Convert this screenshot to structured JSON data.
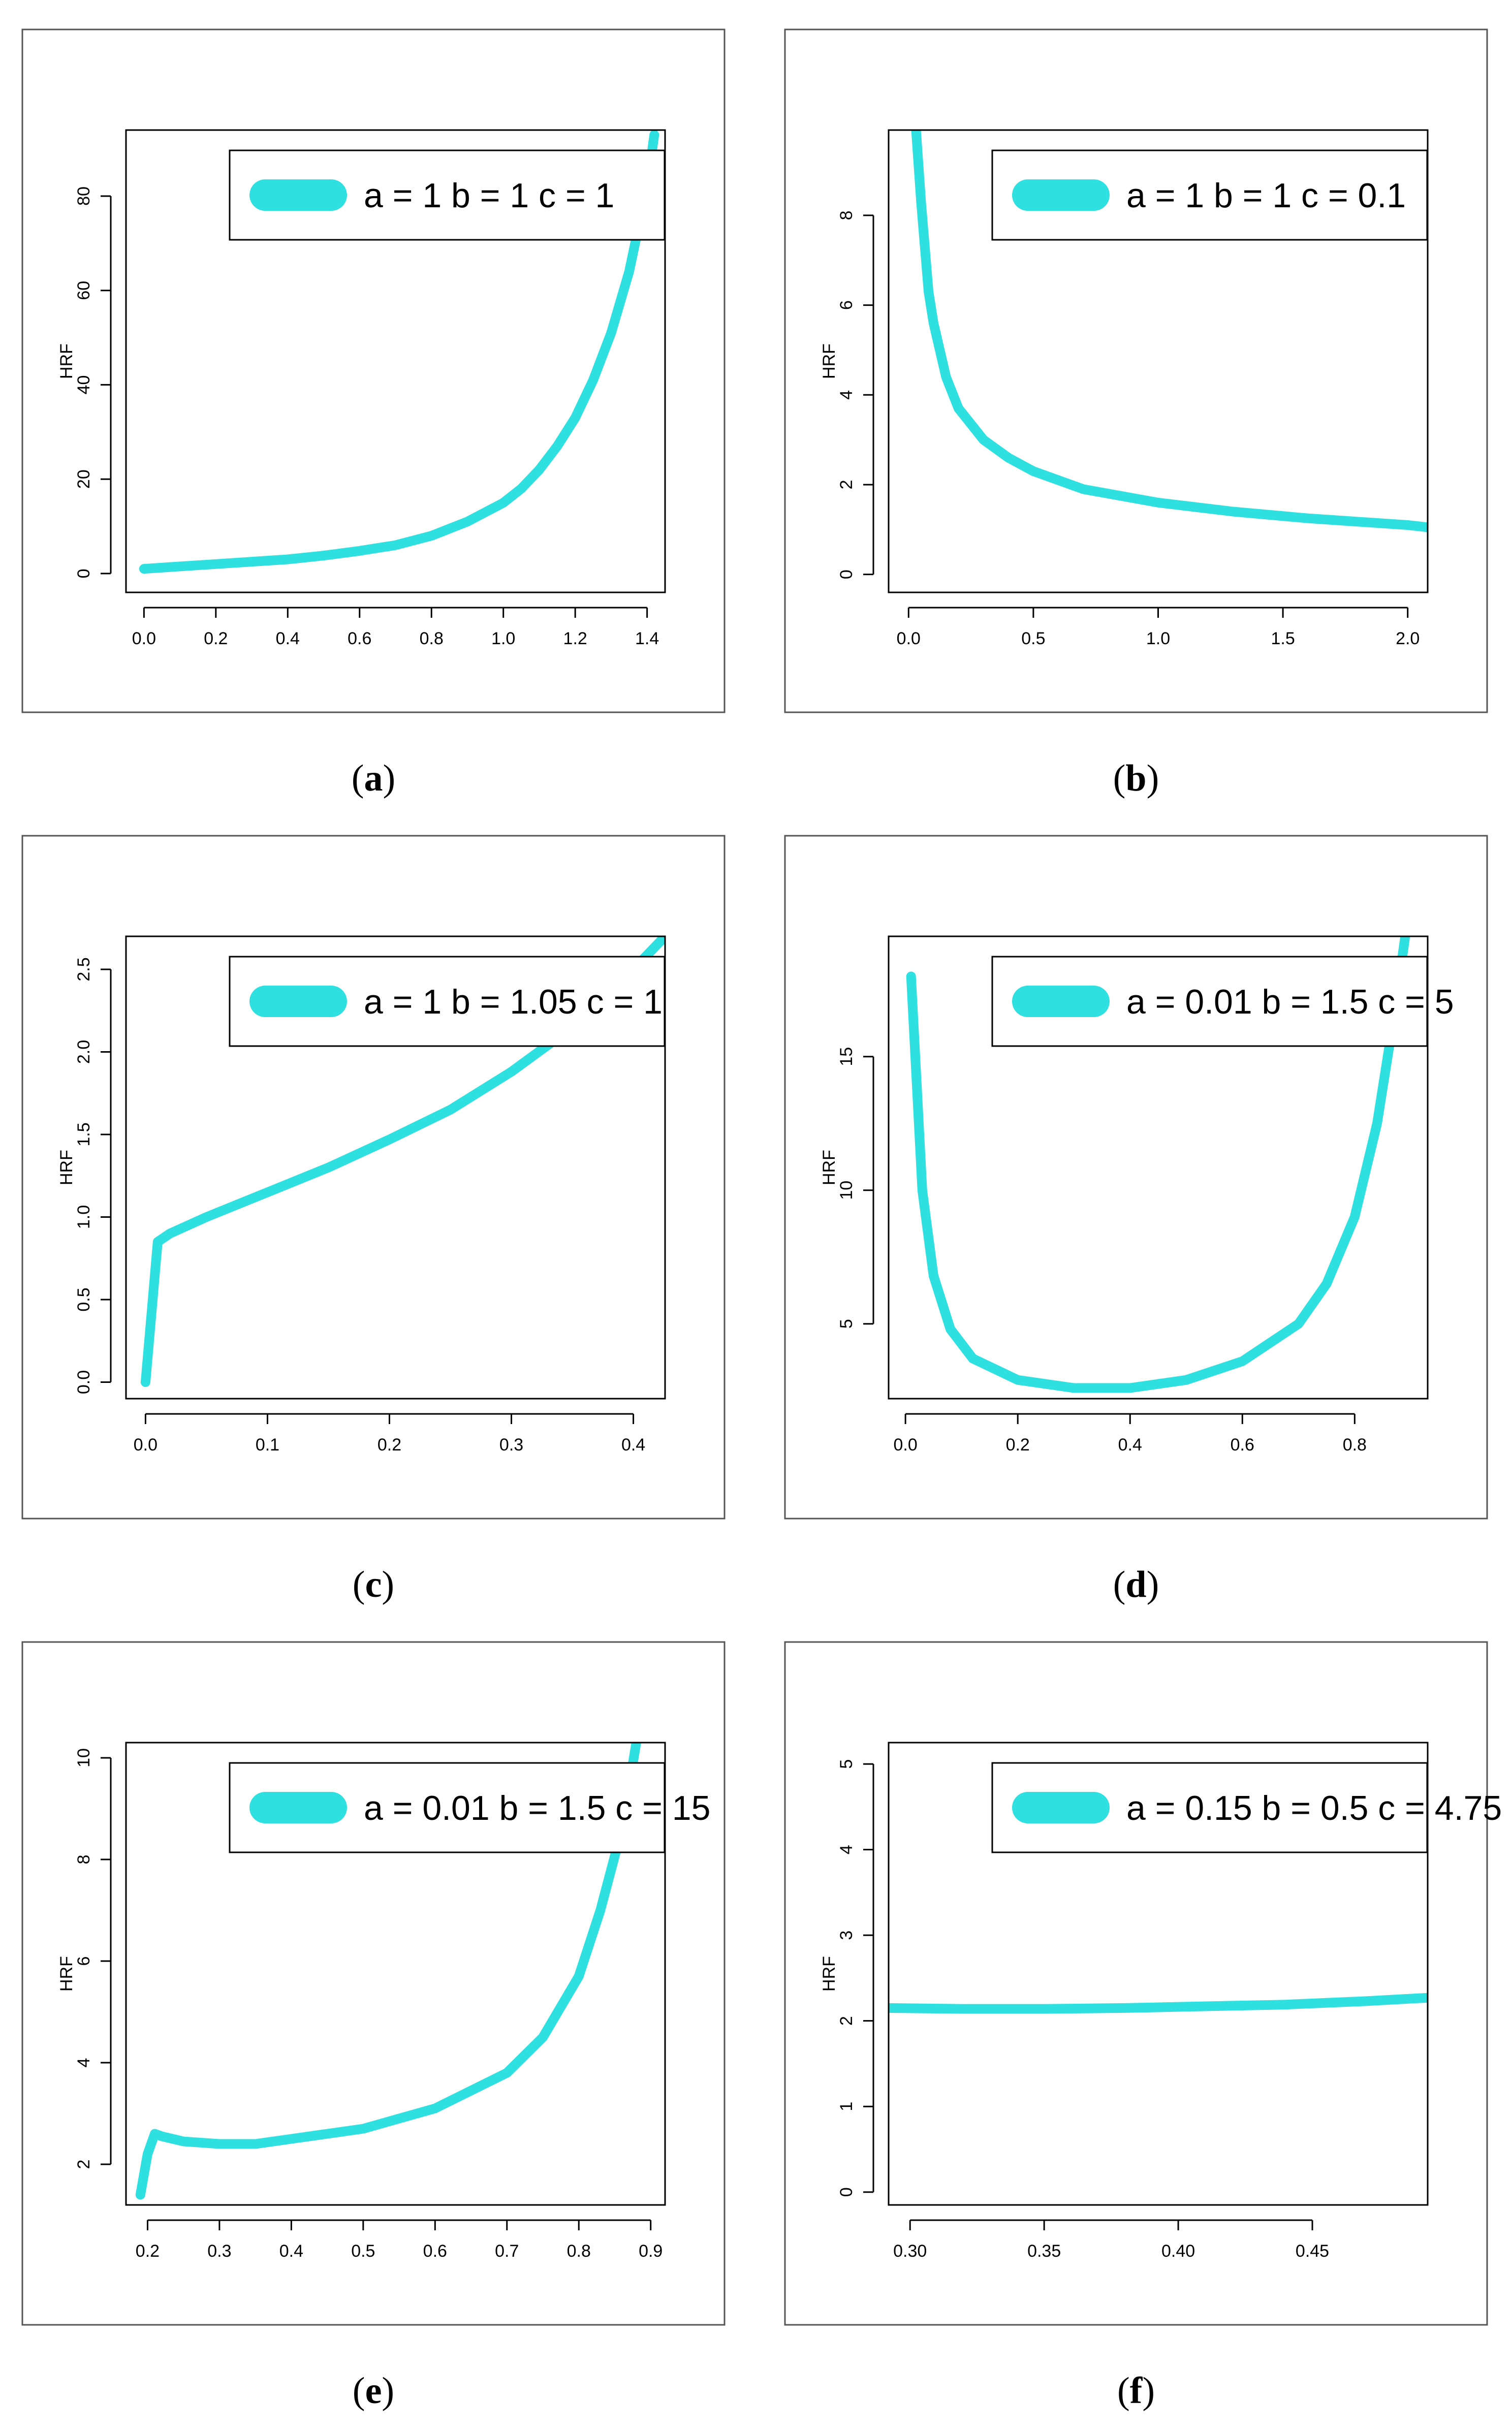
{
  "chart_data": [
    {
      "type": "line",
      "panel": "a",
      "caption_letter": "a",
      "xlabel": "",
      "ylabel": "HRF",
      "xlim": [
        -0.05,
        1.45
      ],
      "ylim": [
        -4,
        94
      ],
      "xticks": [
        0.0,
        0.2,
        0.4,
        0.6,
        0.8,
        1.0,
        1.2,
        1.4
      ],
      "xtick_labels": [
        "0.0",
        "0.2",
        "0.4",
        "0.6",
        "0.8",
        "1.0",
        "1.2",
        "1.4"
      ],
      "yticks": [
        0,
        20,
        40,
        60,
        80
      ],
      "ytick_labels": [
        "0",
        "20",
        "40",
        "60",
        "80"
      ],
      "legend": {
        "a": "1",
        "b": "1",
        "c": "1"
      },
      "series": [
        {
          "name": "a = 1 b = 1 c = 1",
          "color": "#2ee0e0",
          "x": [
            0.0,
            0.1,
            0.2,
            0.3,
            0.4,
            0.5,
            0.6,
            0.7,
            0.8,
            0.9,
            1.0,
            1.05,
            1.1,
            1.15,
            1.2,
            1.25,
            1.3,
            1.35,
            1.4,
            1.42
          ],
          "y": [
            1.0,
            1.5,
            2.0,
            2.5,
            3.0,
            3.8,
            4.8,
            6.0,
            8.0,
            11.0,
            15.0,
            18.0,
            22.0,
            27.0,
            33.0,
            41.0,
            51.0,
            64.0,
            82.0,
            93.0
          ]
        }
      ]
    },
    {
      "type": "line",
      "panel": "b",
      "caption_letter": "b",
      "xlabel": "",
      "ylabel": "HRF",
      "xlim": [
        -0.08,
        2.08
      ],
      "ylim": [
        -0.4,
        9.9
      ],
      "xticks": [
        0.0,
        0.5,
        1.0,
        1.5,
        2.0
      ],
      "xtick_labels": [
        "0.0",
        "0.5",
        "1.0",
        "1.5",
        "2.0"
      ],
      "yticks": [
        0,
        2,
        4,
        6,
        8
      ],
      "ytick_labels": [
        "0",
        "2",
        "4",
        "6",
        "8"
      ],
      "legend": {
        "a": "1",
        "b": "1",
        "c": "0.1"
      },
      "series": [
        {
          "name": "a = 1 b = 1 c = 0.1",
          "color": "#2ee0e0",
          "x": [
            0.03,
            0.05,
            0.08,
            0.1,
            0.15,
            0.2,
            0.3,
            0.4,
            0.5,
            0.7,
            1.0,
            1.3,
            1.6,
            2.0,
            2.08
          ],
          "y": [
            9.9,
            8.3,
            6.3,
            5.6,
            4.4,
            3.7,
            3.0,
            2.6,
            2.3,
            1.9,
            1.6,
            1.4,
            1.25,
            1.1,
            1.05
          ]
        }
      ]
    },
    {
      "type": "line",
      "panel": "c",
      "caption_letter": "c",
      "xlabel": "",
      "ylabel": "HRF",
      "xlim": [
        -0.016,
        0.426
      ],
      "ylim": [
        -0.1,
        2.7
      ],
      "xticks": [
        0.0,
        0.1,
        0.2,
        0.3,
        0.4
      ],
      "xtick_labels": [
        "0.0",
        "0.1",
        "0.2",
        "0.3",
        "0.4"
      ],
      "yticks": [
        0.0,
        0.5,
        1.0,
        1.5,
        2.0,
        2.5
      ],
      "ytick_labels": [
        "0.0",
        "0.5",
        "1.0",
        "1.5",
        "2.0",
        "2.5"
      ],
      "legend": {
        "a": "1",
        "b": "1.05",
        "c": "1"
      },
      "series": [
        {
          "name": "a = 1 b = 1.05 c = 1",
          "color": "#2ee0e0",
          "x": [
            0.0,
            0.01,
            0.02,
            0.05,
            0.1,
            0.15,
            0.2,
            0.25,
            0.3,
            0.35,
            0.4,
            0.426
          ],
          "y": [
            0.0,
            0.85,
            0.9,
            1.0,
            1.15,
            1.3,
            1.47,
            1.65,
            1.88,
            2.15,
            2.5,
            2.7
          ]
        }
      ]
    },
    {
      "type": "line",
      "panel": "d",
      "caption_letter": "d",
      "xlabel": "",
      "ylabel": "HRF",
      "xlim": [
        -0.03,
        0.93
      ],
      "ylim": [
        2.2,
        19.5
      ],
      "xticks": [
        0.0,
        0.2,
        0.4,
        0.6,
        0.8
      ],
      "xtick_labels": [
        "0.0",
        "0.2",
        "0.4",
        "0.6",
        "0.8"
      ],
      "yticks": [
        5,
        10,
        15
      ],
      "ytick_labels": [
        "5",
        "10",
        "15"
      ],
      "legend": {
        "a": "0.01",
        "b": "1.5",
        "c": "5"
      },
      "series": [
        {
          "name": "a = 0.01 b = 1.5 c = 5",
          "color": "#2ee0e0",
          "x": [
            0.01,
            0.02,
            0.03,
            0.05,
            0.08,
            0.12,
            0.2,
            0.3,
            0.4,
            0.5,
            0.6,
            0.7,
            0.75,
            0.8,
            0.84,
            0.87,
            0.89
          ],
          "y": [
            18.0,
            14.0,
            10.0,
            6.8,
            4.8,
            3.7,
            2.9,
            2.6,
            2.6,
            2.9,
            3.6,
            5.0,
            6.5,
            9.0,
            12.5,
            16.5,
            19.5
          ]
        }
      ]
    },
    {
      "type": "line",
      "panel": "e",
      "caption_letter": "e",
      "xlabel": "",
      "ylabel": "HRF",
      "xlim": [
        0.17,
        0.92
      ],
      "ylim": [
        1.2,
        10.3
      ],
      "xticks": [
        0.2,
        0.3,
        0.4,
        0.5,
        0.6,
        0.7,
        0.8,
        0.9
      ],
      "xtick_labels": [
        "0.2",
        "0.3",
        "0.4",
        "0.5",
        "0.6",
        "0.7",
        "0.8",
        "0.9"
      ],
      "yticks": [
        2,
        4,
        6,
        8,
        10
      ],
      "ytick_labels": [
        "2",
        "4",
        "6",
        "8",
        "10"
      ],
      "legend": {
        "a": "0.01",
        "b": "1.5",
        "c": "15"
      },
      "series": [
        {
          "name": "a = 0.01 b = 1.5 c = 15",
          "color": "#2ee0e0",
          "x": [
            0.19,
            0.2,
            0.21,
            0.22,
            0.25,
            0.3,
            0.35,
            0.4,
            0.5,
            0.6,
            0.7,
            0.75,
            0.8,
            0.83,
            0.86,
            0.88
          ],
          "y": [
            1.4,
            2.2,
            2.6,
            2.55,
            2.45,
            2.4,
            2.4,
            2.5,
            2.7,
            3.1,
            3.8,
            4.5,
            5.7,
            7.0,
            8.6,
            10.3
          ]
        }
      ]
    },
    {
      "type": "line",
      "panel": "f",
      "caption_letter": "f",
      "xlabel": "",
      "ylabel": "HRF",
      "xlim": [
        0.292,
        0.493
      ],
      "ylim": [
        -0.15,
        5.25
      ],
      "xticks": [
        0.3,
        0.35,
        0.4,
        0.45
      ],
      "xtick_labels": [
        "0.30",
        "0.35",
        "0.40",
        "0.45"
      ],
      "yticks": [
        0,
        1,
        2,
        3,
        4,
        5
      ],
      "ytick_labels": [
        "0",
        "1",
        "2",
        "3",
        "4",
        "5"
      ],
      "legend": {
        "a": "0.15",
        "b": "0.5",
        "c": "4.75"
      },
      "series": [
        {
          "name": "a = 0.15 b = 0.5 c = 4.75",
          "color": "#2ee0e0",
          "x": [
            0.292,
            0.32,
            0.35,
            0.38,
            0.41,
            0.44,
            0.47,
            0.493
          ],
          "y": [
            2.15,
            2.14,
            2.14,
            2.15,
            2.17,
            2.19,
            2.23,
            2.27
          ]
        }
      ]
    }
  ]
}
